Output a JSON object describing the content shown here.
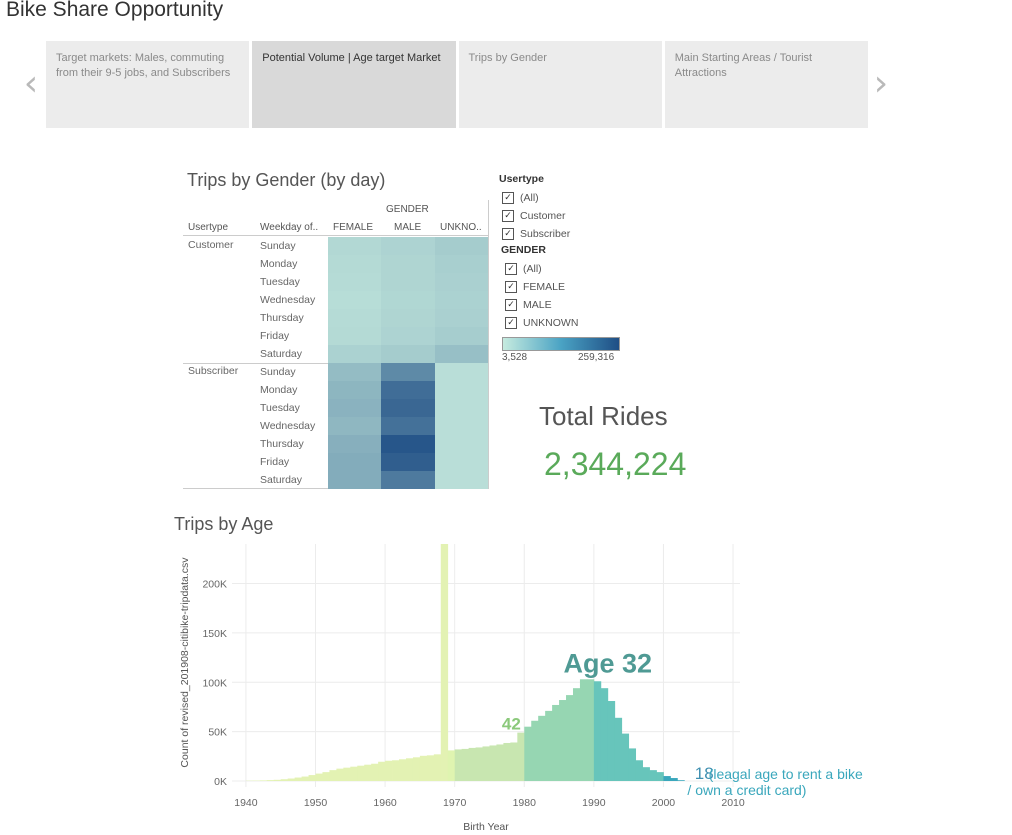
{
  "story": {
    "title": "Bike Share Opportunity",
    "prev_icon": "chevron-left-icon",
    "next_icon": "chevron-right-icon",
    "points": [
      {
        "label": "Target markets:  Males, commuting from their 9-5 jobs, and Subscribers",
        "active": false
      },
      {
        "label": "Potential Volume | Age target Market",
        "active": true
      },
      {
        "label": "Trips by Gender",
        "active": false
      },
      {
        "label": "Main Starting Areas / Tourist Attractions",
        "active": false
      }
    ]
  },
  "heatmap": {
    "title": "Trips by Gender (by day)",
    "col_group_header": "GENDER",
    "usertype_header": "Usertype",
    "weekday_header": "Weekday of..",
    "columns": [
      "FEMALE",
      "MALE",
      "UNKNO.."
    ],
    "groups": [
      {
        "usertype": "Customer",
        "days": [
          "Sunday",
          "Monday",
          "Tuesday",
          "Wednesday",
          "Thursday",
          "Friday",
          "Saturday"
        ]
      },
      {
        "usertype": "Subscriber",
        "days": [
          "Sunday",
          "Monday",
          "Tuesday",
          "Wednesday",
          "Thursday",
          "Friday",
          "Saturday"
        ]
      }
    ],
    "values": [
      [
        0.12,
        0.15,
        0.2
      ],
      [
        0.11,
        0.14,
        0.18
      ],
      [
        0.1,
        0.14,
        0.17
      ],
      [
        0.09,
        0.13,
        0.16
      ],
      [
        0.1,
        0.14,
        0.17
      ],
      [
        0.11,
        0.15,
        0.19
      ],
      [
        0.16,
        0.2,
        0.28
      ],
      [
        0.3,
        0.62,
        0.08
      ],
      [
        0.34,
        0.8,
        0.08
      ],
      [
        0.36,
        0.84,
        0.08
      ],
      [
        0.33,
        0.78,
        0.08
      ],
      [
        0.38,
        0.95,
        0.08
      ],
      [
        0.4,
        0.9,
        0.08
      ],
      [
        0.4,
        0.72,
        0.08
      ]
    ],
    "color_low": "#c6ebdf",
    "color_high": "#1f4e85"
  },
  "filters": {
    "usertype_title": "Usertype",
    "usertype_items": [
      "(All)",
      "Customer",
      "Subscriber"
    ],
    "gender_title": "GENDER",
    "gender_items": [
      "(All)",
      "FEMALE",
      "MALE",
      "UNKNOWN"
    ],
    "legend_min": "3,528",
    "legend_max": "259,316",
    "checked": true
  },
  "kpi": {
    "title": "Total Rides",
    "value": "2,344,224",
    "value_color": "#5aaa5a"
  },
  "chart_data": {
    "type": "bar",
    "title": "Trips by Age",
    "xlabel": "Birth Year",
    "ylabel": "Count of revised_201908-citibike-tripdata.csv",
    "xlim": [
      1938,
      2011
    ],
    "ylim": [
      0,
      240000
    ],
    "x_ticks": [
      1940,
      1950,
      1960,
      1970,
      1980,
      1990,
      2000,
      2010
    ],
    "x_tick_labels": [
      "1940",
      "1950",
      "1960",
      "1970",
      "1980",
      "1990",
      "2000",
      "2010"
    ],
    "y_ticks": [
      0,
      50000,
      100000,
      150000,
      200000
    ],
    "y_tick_labels": [
      "0K",
      "50K",
      "100K",
      "150K",
      "200K"
    ],
    "x": [
      1941,
      1942,
      1943,
      1944,
      1945,
      1946,
      1947,
      1948,
      1949,
      1950,
      1951,
      1952,
      1953,
      1954,
      1955,
      1956,
      1957,
      1958,
      1959,
      1960,
      1961,
      1962,
      1963,
      1964,
      1965,
      1966,
      1967,
      1968,
      1969,
      1970,
      1971,
      1972,
      1973,
      1974,
      1975,
      1976,
      1977,
      1978,
      1979,
      1980,
      1981,
      1982,
      1983,
      1984,
      1985,
      1986,
      1987,
      1988,
      1989,
      1990,
      1991,
      1992,
      1993,
      1994,
      1995,
      1996,
      1997,
      1998,
      1999,
      2000,
      2001,
      2002,
      2003
    ],
    "values": [
      300,
      400,
      600,
      900,
      1200,
      1800,
      2500,
      3500,
      4500,
      6000,
      7500,
      9000,
      11000,
      12500,
      13500,
      14500,
      15500,
      16500,
      17500,
      19500,
      20500,
      21000,
      22000,
      23000,
      24000,
      25500,
      26000,
      27000,
      240000,
      31000,
      32000,
      32500,
      33500,
      34000,
      35000,
      36000,
      37000,
      38500,
      39000,
      49000,
      55000,
      61000,
      66000,
      71000,
      77000,
      82000,
      87000,
      94000,
      103000,
      103000,
      101000,
      94000,
      81000,
      64000,
      48000,
      33000,
      21000,
      14000,
      11000,
      9000,
      5000,
      3000,
      800
    ],
    "band_colors": [
      {
        "from": 1930,
        "to": 1969,
        "color": "#e3f2b3"
      },
      {
        "from": 1969,
        "to": 1970,
        "color": "#dff4b0"
      },
      {
        "from": 1970,
        "to": 1980,
        "color": "#c8e6b0"
      },
      {
        "from": 1980,
        "to": 1990,
        "color": "#96d6b2"
      },
      {
        "from": 1990,
        "to": 2000,
        "color": "#67c5bb"
      },
      {
        "from": 2000,
        "to": 2011,
        "color": "#3aa7bc"
      }
    ],
    "annotations": [
      {
        "text": "Age 32",
        "x": 1992,
        "y": 110000,
        "color": "#4f9a94"
      },
      {
        "text": "42",
        "x": 1979.5,
        "y": 52000,
        "color": "#8bc97b"
      },
      {
        "text": "18",
        "x": 2004.5,
        "y": 2000,
        "color": "#3f8fb0"
      },
      {
        "text": "(leagal age to rent a bike",
        "x": 2006.5,
        "y": 2000,
        "color": "#3aa7bc"
      },
      {
        "text": "/ own a credit card)",
        "x": 2012,
        "y": -14000,
        "color": "#3aa7bc"
      }
    ]
  }
}
